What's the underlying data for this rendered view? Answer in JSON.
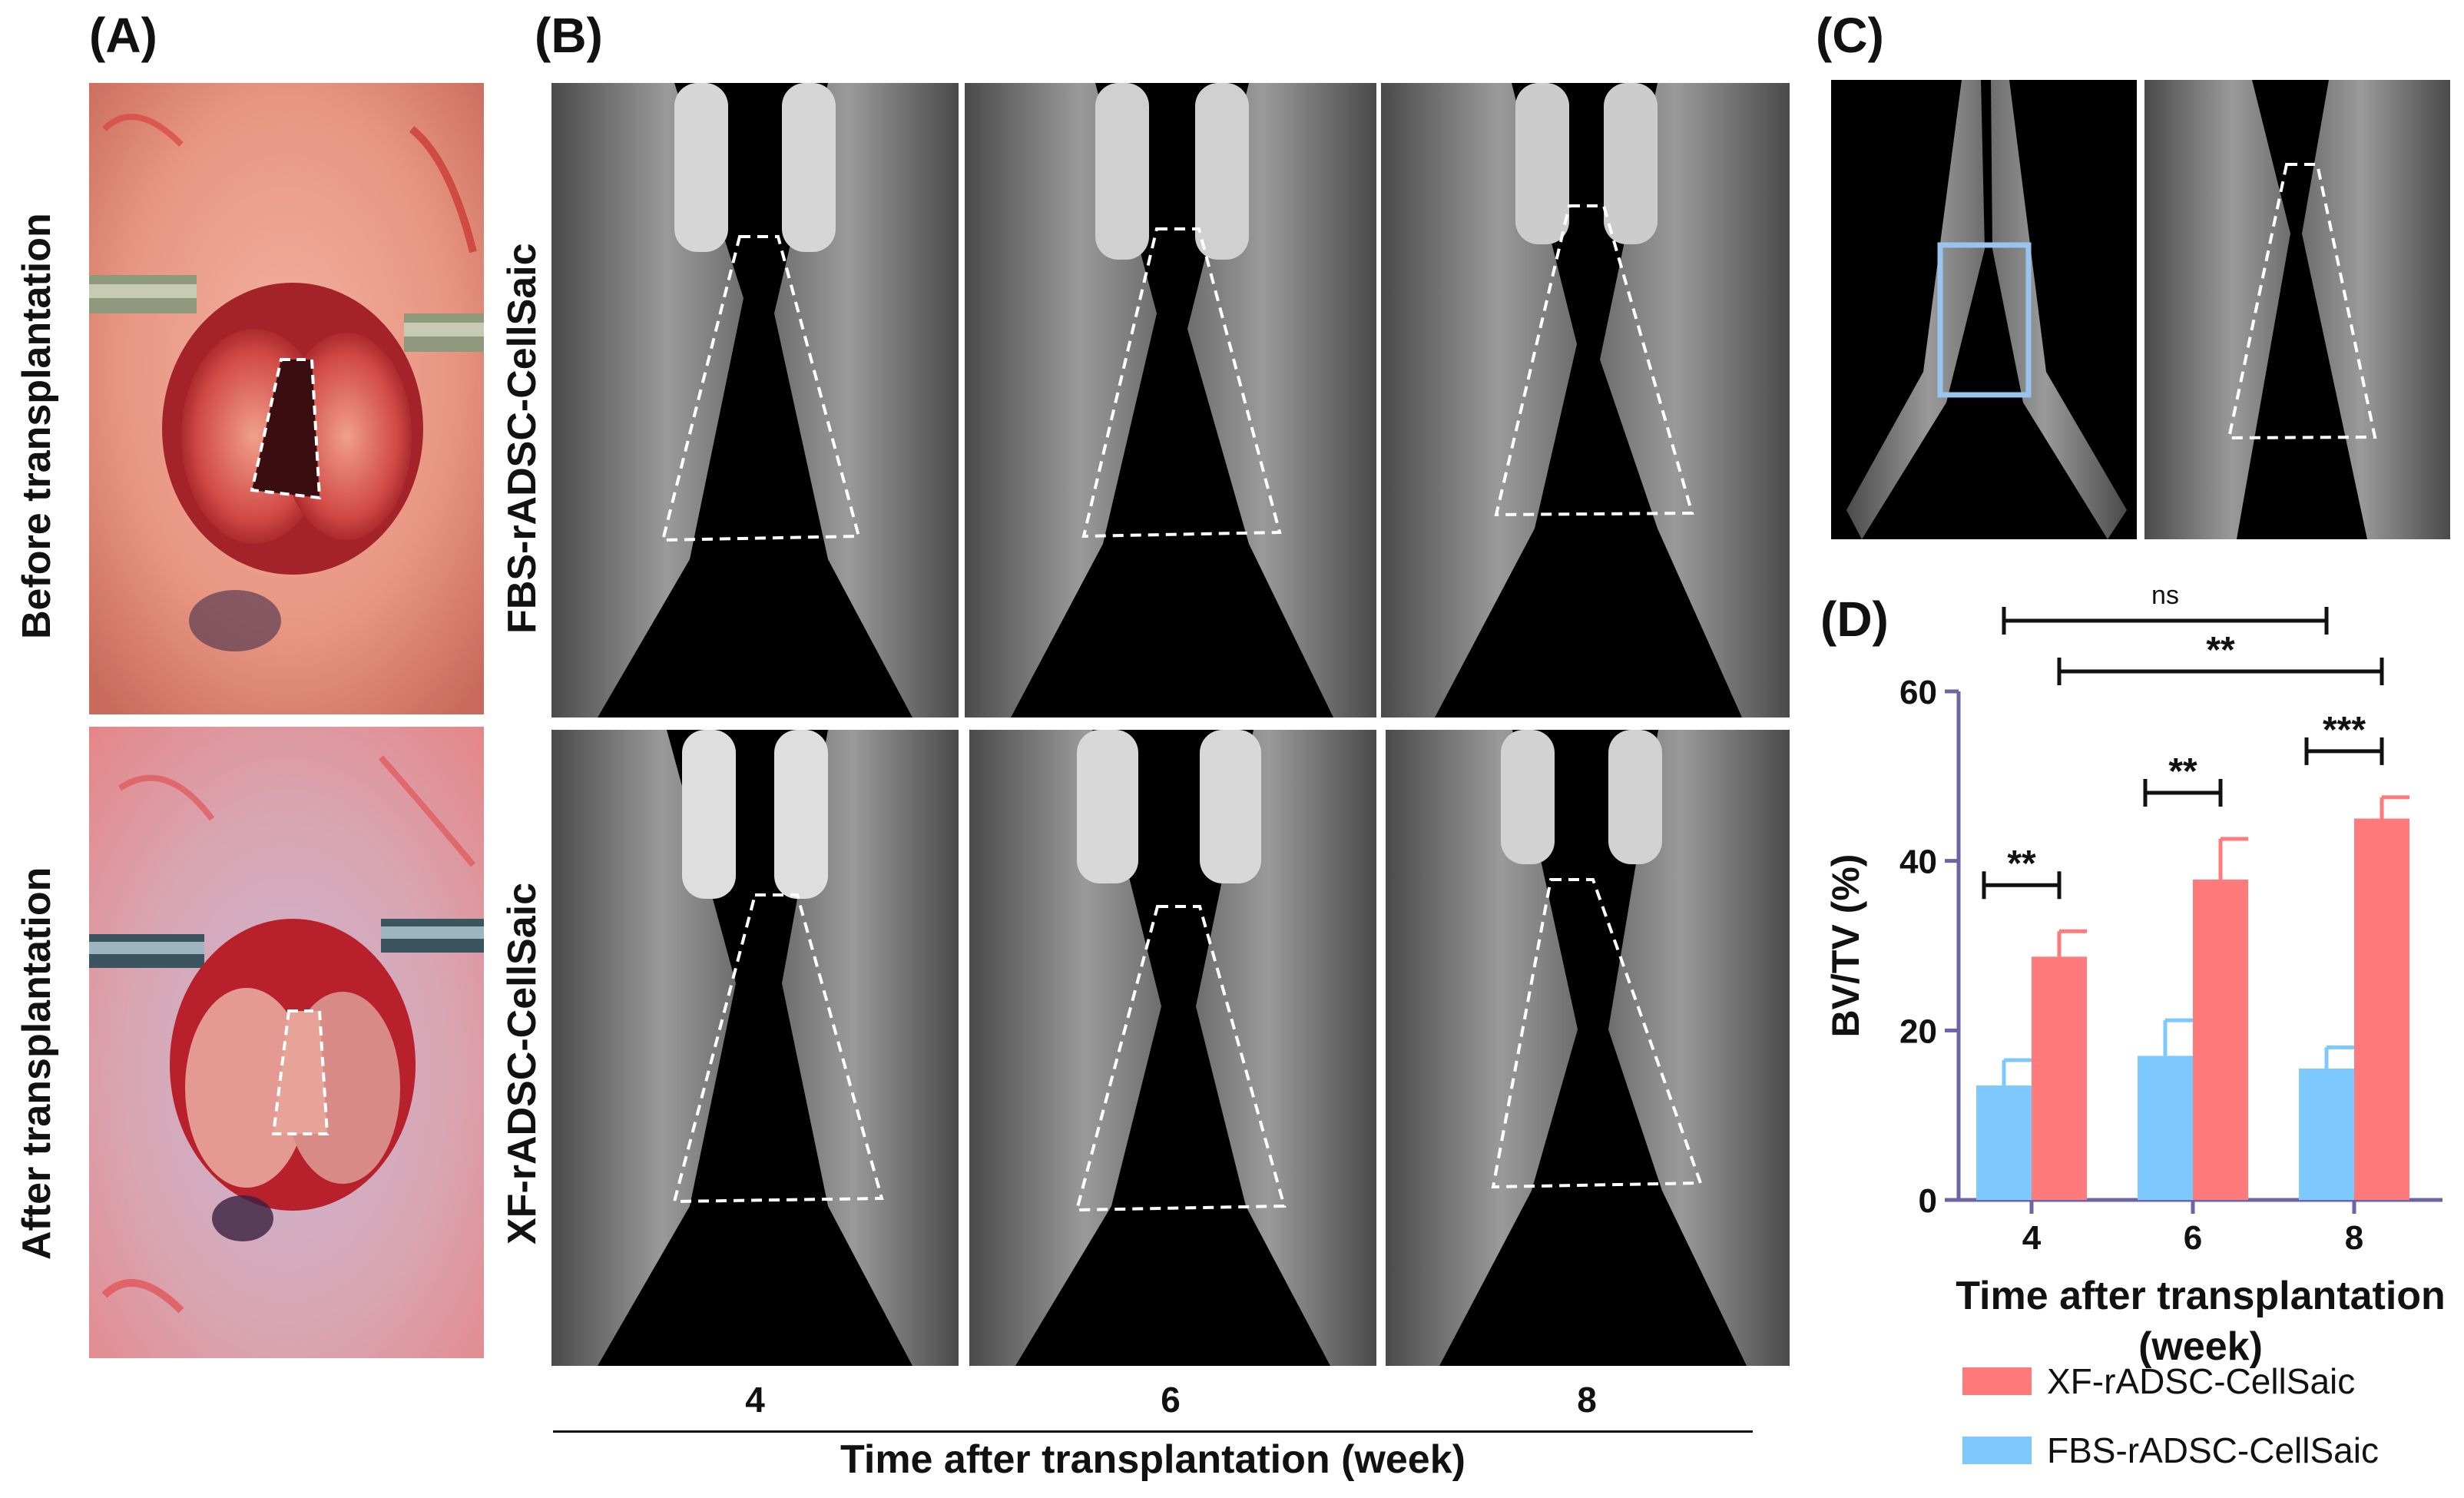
{
  "panels": {
    "a": {
      "letter": "(A)",
      "row_labels": [
        "Before transplantation",
        "After transplantation"
      ]
    },
    "b": {
      "letter": "(B)",
      "row_labels": [
        "FBS-rADSC-CellSaic",
        "XF-rADSC-CellSaic"
      ],
      "columns": [
        "4",
        "6",
        "8"
      ],
      "xlabel": "Time after transplantation (week)"
    },
    "c": {
      "letter": "(C)"
    },
    "d": {
      "letter": "(D)"
    }
  },
  "colors": {
    "xf_bar": "#ff7b7b",
    "fbs_bar": "#7cc8ff",
    "axis": "#6b64a6",
    "roi_box": "#9ac4f0"
  },
  "chart_data": {
    "type": "bar",
    "categories": [
      "4",
      "6",
      "8"
    ],
    "series": [
      {
        "name": "FBS-rADSC-CellSaic",
        "values": [
          13.5,
          17.0,
          15.5
        ],
        "errors": [
          3.0,
          4.2,
          2.5
        ]
      },
      {
        "name": "XF-rADSC-CellSaic",
        "values": [
          28.7,
          37.8,
          45.0
        ],
        "errors": [
          3.0,
          4.8,
          2.5
        ]
      }
    ],
    "ylabel": "BV/TV (%)",
    "xlabel": "Time after transplantation\n(week)",
    "ylim": [
      0,
      60
    ],
    "yticks": [
      0,
      20,
      40,
      60
    ],
    "legend": [
      "XF-rADSC-CellSaic",
      "FBS-rADSC-CellSaic"
    ],
    "legend_position": "bottom",
    "significance": [
      {
        "label": "**",
        "from": "4-FBS",
        "to": "4-XF"
      },
      {
        "label": "**",
        "from": "6-FBS",
        "to": "6-XF"
      },
      {
        "label": "***",
        "from": "8-FBS",
        "to": "8-XF"
      },
      {
        "label": "ns",
        "from": "4-FBS",
        "to": "8-FBS"
      },
      {
        "label": "**",
        "from": "4-XF",
        "to": "8-XF"
      }
    ]
  }
}
